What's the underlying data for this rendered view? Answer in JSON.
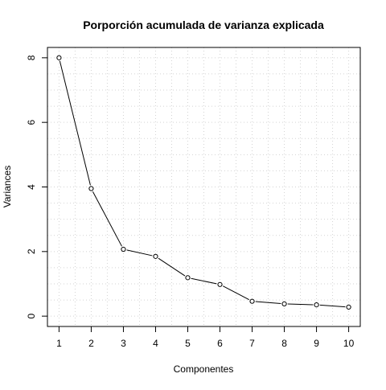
{
  "chart_data": {
    "type": "line",
    "title": "Porporción acumulada de varianza explicada",
    "xlabel": "Componentes",
    "ylabel": "Variances",
    "x": [
      1,
      2,
      3,
      4,
      5,
      6,
      7,
      8,
      9,
      10
    ],
    "values": [
      8.0,
      3.95,
      2.07,
      1.85,
      1.19,
      0.98,
      0.46,
      0.38,
      0.35,
      0.28
    ],
    "x_ticks": [
      1,
      2,
      3,
      4,
      5,
      6,
      7,
      8,
      9,
      10
    ],
    "x_tick_labels": [
      "1",
      "2",
      "3",
      "4",
      "5",
      "6",
      "7",
      "8",
      "9",
      "10"
    ],
    "y_ticks": [
      0,
      2,
      4,
      6,
      8
    ],
    "y_tick_labels": [
      "0",
      "2",
      "4",
      "6",
      "8"
    ],
    "xlim": [
      0.64,
      10.36
    ],
    "ylim": [
      -0.32,
      8.32
    ],
    "grid": true,
    "grid_style": "dotted",
    "line_color": "#000000",
    "marker": "open-circle",
    "grid_color": "#d3d3d3"
  }
}
